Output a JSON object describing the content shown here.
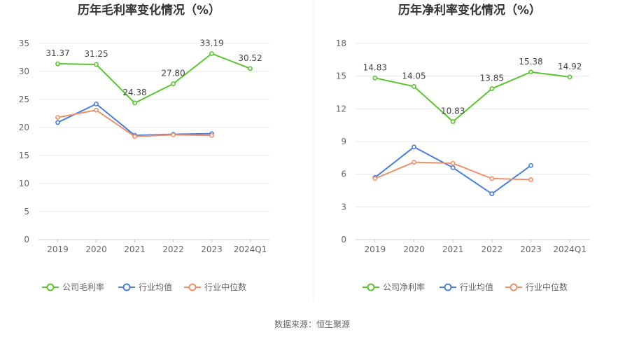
{
  "source_note": "数据来源：恒生聚源",
  "legend": {
    "industry_avg": "行业均值",
    "industry_median": "行业中位数"
  },
  "colors": {
    "company": "#5bc531",
    "industry_avg": "#4a7fdb",
    "industry_median": "#f0906a",
    "grid": "#e8e8e8",
    "axis": "#cccccc"
  },
  "chart_data": [
    {
      "type": "line",
      "title": "历年毛利率变化情况（%）",
      "categories": [
        "2019",
        "2020",
        "2021",
        "2022",
        "2023",
        "2024Q1"
      ],
      "ylim": [
        0,
        35
      ],
      "yticks": [
        0,
        5,
        10,
        15,
        20,
        25,
        30,
        35
      ],
      "grid": true,
      "legend_position": "bottom",
      "series": [
        {
          "name": "公司毛利率",
          "key": "company",
          "values": [
            31.37,
            31.25,
            24.38,
            27.8,
            33.19,
            30.52
          ],
          "labels": [
            "31.37",
            "31.25",
            "24.38",
            "27.80",
            "33.19",
            "30.52"
          ]
        },
        {
          "name": "行业均值",
          "key": "industry_avg",
          "values": [
            20.9,
            24.2,
            18.6,
            18.8,
            18.9,
            null
          ]
        },
        {
          "name": "行业中位数",
          "key": "industry_median",
          "values": [
            21.8,
            23.1,
            18.4,
            18.7,
            18.6,
            null
          ]
        }
      ]
    },
    {
      "type": "line",
      "title": "历年净利率变化情况（%）",
      "categories": [
        "2019",
        "2020",
        "2021",
        "2022",
        "2023",
        "2024Q1"
      ],
      "ylim": [
        0,
        18
      ],
      "yticks": [
        0,
        3,
        6,
        9,
        12,
        15,
        18
      ],
      "grid": true,
      "legend_position": "bottom",
      "series": [
        {
          "name": "公司净利率",
          "key": "company",
          "values": [
            14.83,
            14.05,
            10.83,
            13.85,
            15.38,
            14.92
          ],
          "labels": [
            "14.83",
            "14.05",
            "10.83",
            "13.85",
            "15.38",
            "14.92"
          ]
        },
        {
          "name": "行业均值",
          "key": "industry_avg",
          "values": [
            5.7,
            8.5,
            6.6,
            4.2,
            6.8,
            null
          ]
        },
        {
          "name": "行业中位数",
          "key": "industry_median",
          "values": [
            5.6,
            7.1,
            7.0,
            5.6,
            5.5,
            null
          ]
        }
      ]
    }
  ]
}
